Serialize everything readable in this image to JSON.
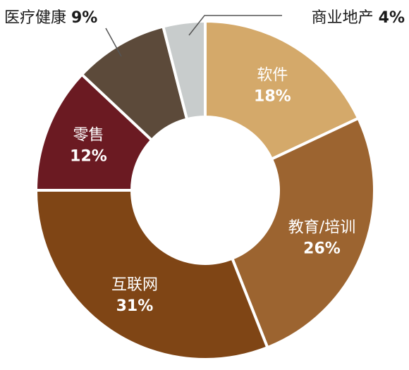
{
  "chart_data": {
    "type": "pie",
    "donut": true,
    "title": "",
    "categories": [
      "软件",
      "教育/培训",
      "互联网",
      "零售",
      "医疗健康",
      "商业地产"
    ],
    "values": [
      18,
      26,
      31,
      12,
      9,
      4
    ],
    "value_labels": [
      "18%",
      "26%",
      "31%",
      "12%",
      "9%",
      "4%"
    ],
    "colors": [
      "#D4A96A",
      "#9C6430",
      "#7F4515",
      "#6B1A22",
      "#5C4A3A",
      "#C8CCCC"
    ],
    "label_colors": [
      "#ffffff",
      "#ffffff",
      "#ffffff",
      "#ffffff",
      "#1a1a1a",
      "#1a1a1a"
    ],
    "label_placement": [
      "inside",
      "inside",
      "inside",
      "inside",
      "outside-top-left",
      "outside-top-right"
    ],
    "start": "top, clockwise"
  }
}
